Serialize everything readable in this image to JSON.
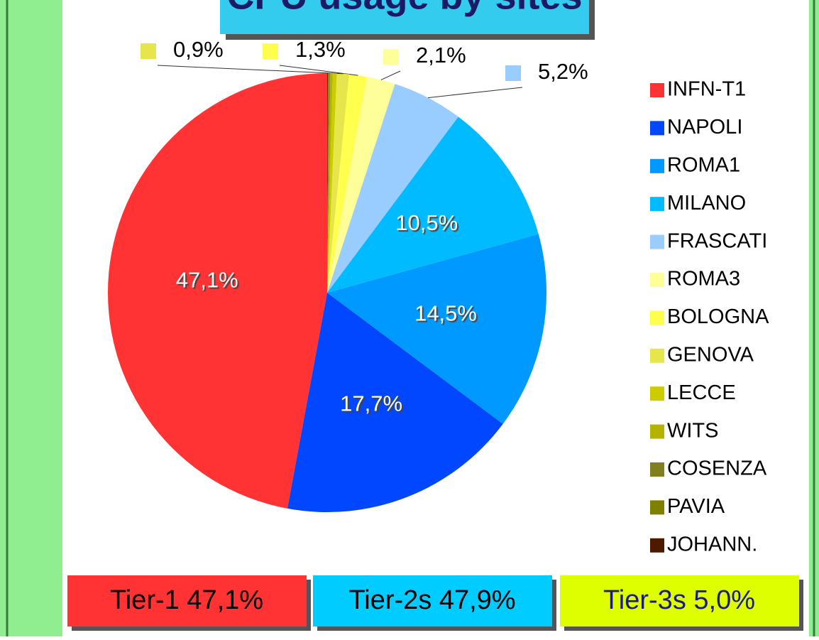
{
  "chart_data": {
    "type": "pie",
    "title": "CPU usage by sites",
    "categories": [
      "INFN-T1",
      "NAPOLI",
      "ROMA1",
      "MILANO",
      "FRASCATI",
      "ROMA3",
      "BOLOGNA",
      "GENOVA",
      "LECCE",
      "WITS",
      "COSENZA",
      "PAVIA",
      "JOHANN."
    ],
    "values": [
      47.1,
      17.7,
      14.5,
      10.5,
      5.2,
      2.1,
      1.3,
      0.9,
      0.3,
      0.2,
      0.1,
      0.05,
      0.05
    ],
    "value_labels": [
      "47,1%",
      "17,7%",
      "14,5%",
      "10,5%",
      "5,2%",
      "2,1%",
      "1,3%",
      "0,9%",
      null,
      null,
      null,
      null,
      null
    ],
    "colors": [
      "#ff3333",
      "#0047ff",
      "#0099ff",
      "#00bbff",
      "#99ccff",
      "#ffff99",
      "#ffff4d",
      "#e6e64c",
      "#cccc00",
      "#b3b300",
      "#808020",
      "#808000",
      "#4d1a00"
    ],
    "tiers": [
      "Tier-1 47,1%",
      "Tier-2s 47,9%",
      "Tier-3s 5,0%"
    ]
  }
}
